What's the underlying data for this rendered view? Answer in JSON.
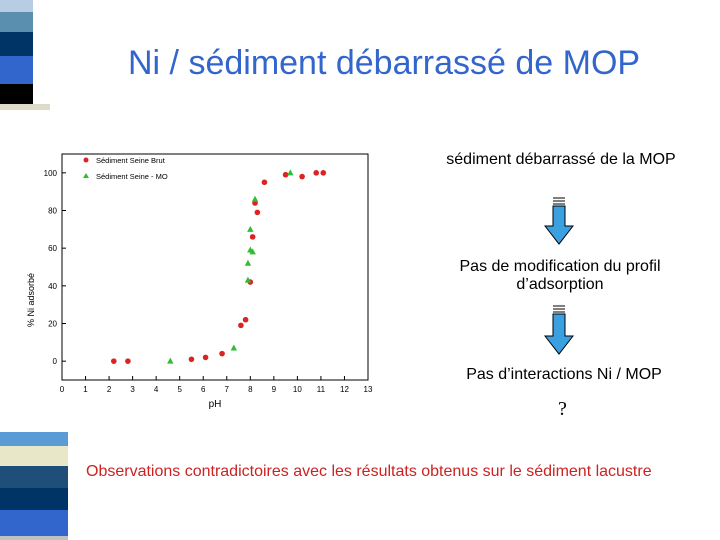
{
  "slide": {
    "title": "Ni / sédiment débarrassé de MOP",
    "notes": [
      "sédiment débarrassé de la MOP",
      "Pas de modification du profil d’adsorption",
      "Pas d’interactions Ni / MOP"
    ],
    "question_mark": "?",
    "conclusion": "Observations contradictoires avec les résultats obtenus sur le sédiment lacustre"
  },
  "colors": {
    "title": "#3366cc",
    "conclusion": "#cc2222",
    "arrow_fill": "#3aa0e0",
    "series_red": "#dd2222",
    "series_green": "#33bb33"
  },
  "chart_data": {
    "type": "scatter",
    "xlabel": "pH",
    "ylabel": "% Ni adsorbé",
    "xlim": [
      0,
      13
    ],
    "ylim": [
      -10,
      110
    ],
    "xticks": [
      0,
      1,
      2,
      3,
      4,
      5,
      6,
      7,
      8,
      9,
      10,
      11,
      12,
      13
    ],
    "yticks": [
      0,
      20,
      40,
      60,
      80,
      100
    ],
    "legend_position": "top-left",
    "series": [
      {
        "name": "Sédiment Seine Brut",
        "color": "#dd2222",
        "marker": "circle",
        "points": [
          [
            2.2,
            0
          ],
          [
            2.8,
            0
          ],
          [
            5.5,
            1
          ],
          [
            6.1,
            2
          ],
          [
            6.8,
            4
          ],
          [
            7.6,
            19
          ],
          [
            7.8,
            22
          ],
          [
            8.0,
            42
          ],
          [
            8.1,
            66
          ],
          [
            8.2,
            84
          ],
          [
            8.3,
            79
          ],
          [
            8.6,
            95
          ],
          [
            9.5,
            99
          ],
          [
            10.2,
            98
          ],
          [
            10.8,
            100
          ],
          [
            11.1,
            100
          ]
        ],
        "y_jitter": []
      },
      {
        "name": "Sédiment Seine - MO",
        "color": "#33bb33",
        "marker": "triangle",
        "points": [
          [
            4.6,
            0
          ],
          [
            7.3,
            7
          ],
          [
            7.9,
            43
          ],
          [
            7.9,
            52
          ],
          [
            8.0,
            59
          ],
          [
            8.0,
            70
          ],
          [
            8.1,
            58
          ],
          [
            8.2,
            86
          ],
          [
            9.7,
            100
          ]
        ]
      }
    ]
  }
}
